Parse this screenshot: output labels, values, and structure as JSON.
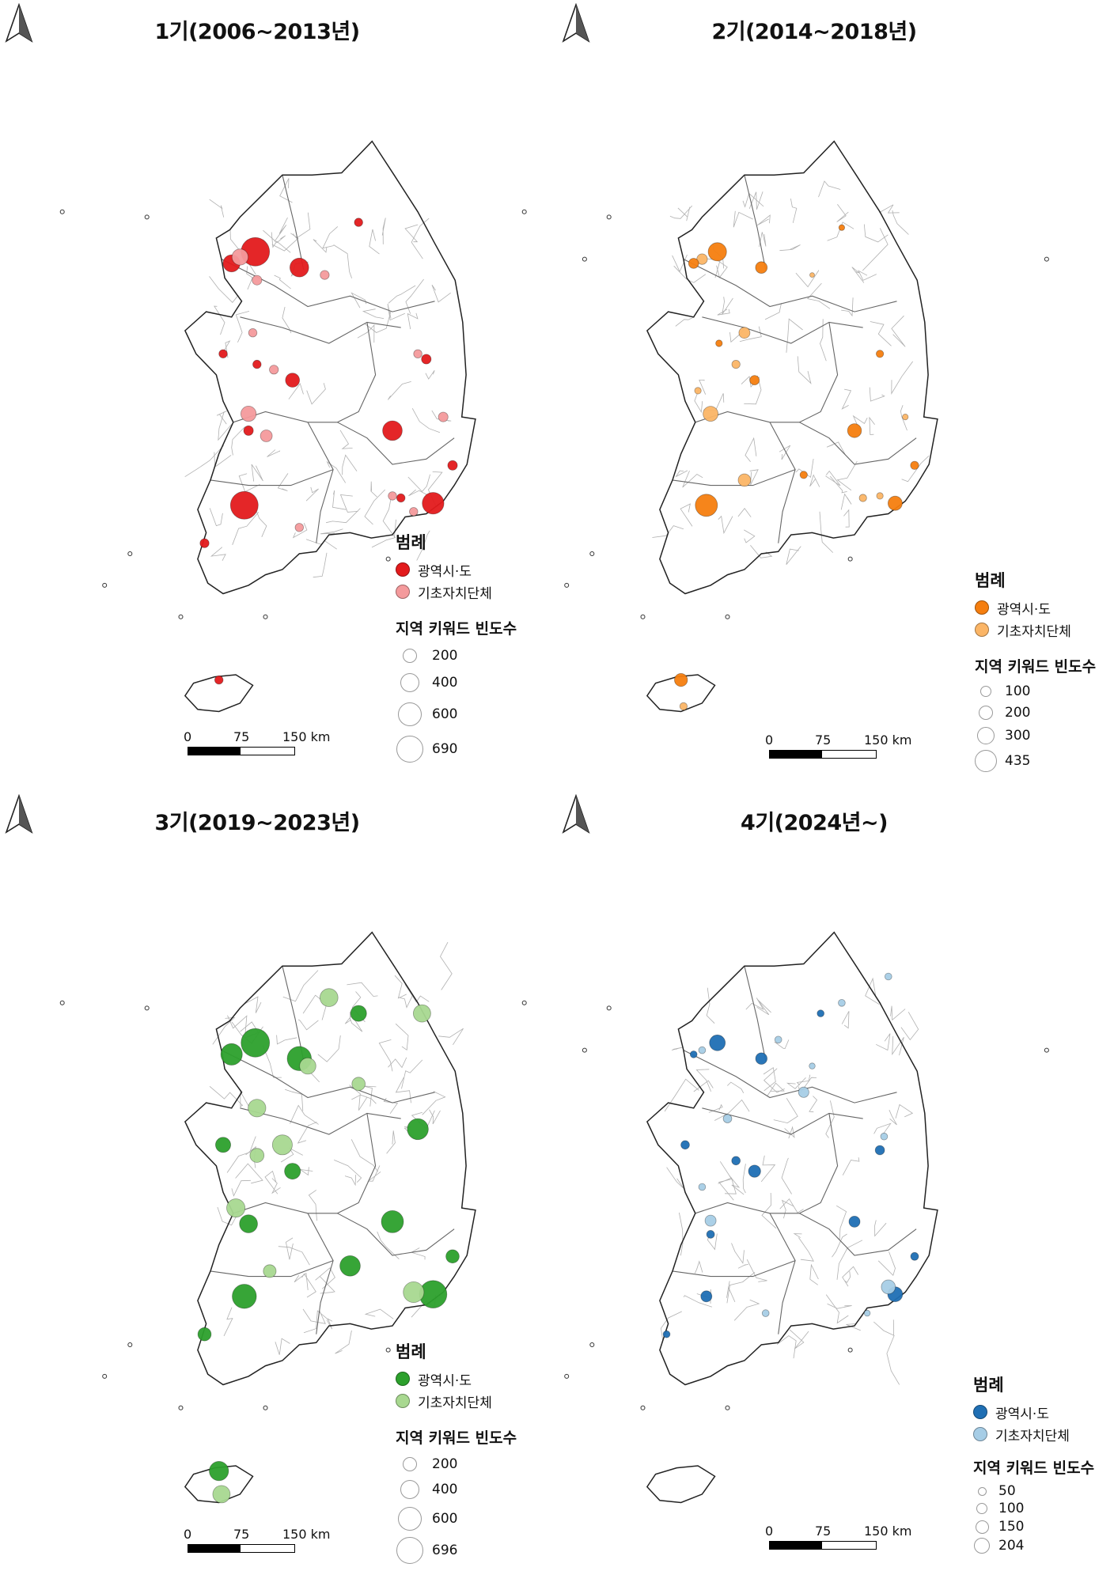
{
  "panels": [
    {
      "title": "1기(2006~2013년)",
      "colors": {
        "metro": "#e31a1c",
        "local": "#f49a9c"
      },
      "legend": {
        "heading": "범례",
        "metro_label": "광역시·도",
        "local_label": "기초자치단체",
        "size_heading": "지역 키워드 빈도수",
        "sizes": [
          "200",
          "400",
          "600",
          "690"
        ]
      },
      "scale": {
        "labels": [
          "0",
          "75",
          "150 km"
        ]
      },
      "points": [
        {
          "lon": 126.98,
          "lat": 37.57,
          "freq": 690,
          "type": "metro"
        },
        {
          "lon": 126.7,
          "lat": 37.46,
          "freq": 250,
          "type": "metro"
        },
        {
          "lon": 127.5,
          "lat": 37.42,
          "freq": 300,
          "type": "metro"
        },
        {
          "lon": 128.2,
          "lat": 37.85,
          "freq": 60,
          "type": "metro"
        },
        {
          "lon": 127.42,
          "lat": 36.35,
          "freq": 170,
          "type": "metro"
        },
        {
          "lon": 127.0,
          "lat": 36.5,
          "freq": 60,
          "type": "metro"
        },
        {
          "lon": 126.6,
          "lat": 36.6,
          "freq": 60,
          "type": "metro"
        },
        {
          "lon": 128.6,
          "lat": 35.87,
          "freq": 330,
          "type": "metro"
        },
        {
          "lon": 129.31,
          "lat": 35.54,
          "freq": 80,
          "type": "metro"
        },
        {
          "lon": 129.08,
          "lat": 35.18,
          "freq": 400,
          "type": "metro"
        },
        {
          "lon": 126.85,
          "lat": 35.16,
          "freq": 650,
          "type": "metro"
        },
        {
          "lon": 126.38,
          "lat": 34.8,
          "freq": 70,
          "type": "metro"
        },
        {
          "lon": 128.7,
          "lat": 35.23,
          "freq": 60,
          "type": "metro"
        },
        {
          "lon": 129.0,
          "lat": 36.55,
          "freq": 80,
          "type": "metro"
        },
        {
          "lon": 126.55,
          "lat": 33.5,
          "freq": 60,
          "type": "metro"
        },
        {
          "lon": 126.9,
          "lat": 35.87,
          "freq": 80,
          "type": "metro"
        },
        {
          "lon": 126.8,
          "lat": 37.52,
          "freq": 220,
          "type": "local"
        },
        {
          "lon": 127.0,
          "lat": 37.3,
          "freq": 80,
          "type": "local"
        },
        {
          "lon": 127.8,
          "lat": 37.35,
          "freq": 70,
          "type": "local"
        },
        {
          "lon": 126.95,
          "lat": 36.8,
          "freq": 60,
          "type": "local"
        },
        {
          "lon": 127.2,
          "lat": 36.45,
          "freq": 70,
          "type": "local"
        },
        {
          "lon": 126.9,
          "lat": 36.03,
          "freq": 200,
          "type": "local"
        },
        {
          "lon": 127.11,
          "lat": 35.82,
          "freq": 120,
          "type": "local"
        },
        {
          "lon": 128.9,
          "lat": 36.6,
          "freq": 60,
          "type": "local"
        },
        {
          "lon": 129.2,
          "lat": 36.0,
          "freq": 80,
          "type": "local"
        },
        {
          "lon": 127.5,
          "lat": 34.95,
          "freq": 60,
          "type": "local"
        },
        {
          "lon": 128.6,
          "lat": 35.25,
          "freq": 60,
          "type": "local"
        },
        {
          "lon": 128.85,
          "lat": 35.1,
          "freq": 60,
          "type": "local"
        }
      ],
      "geo": {
        "x0": 175,
        "y0": 168,
        "sx": 107,
        "sy": 133,
        "maxR": 18,
        "maxF": 690
      }
    },
    {
      "title": "2기(2014~2018년)",
      "colors": {
        "metro": "#f57e0f",
        "local": "#fbb566"
      },
      "legend": {
        "heading": "범례",
        "metro_label": "광역시·도",
        "local_label": "기초자치단체",
        "size_heading": "지역 키워드 빈도수",
        "sizes": [
          "100",
          "200",
          "300",
          "435"
        ]
      },
      "scale": {
        "labels": [
          "0",
          "75",
          "150 km"
        ]
      },
      "points": [
        {
          "lon": 126.98,
          "lat": 37.57,
          "freq": 300,
          "type": "metro"
        },
        {
          "lon": 126.7,
          "lat": 37.46,
          "freq": 90,
          "type": "metro"
        },
        {
          "lon": 127.5,
          "lat": 37.42,
          "freq": 120,
          "type": "metro"
        },
        {
          "lon": 128.45,
          "lat": 37.8,
          "freq": 30,
          "type": "metro"
        },
        {
          "lon": 127.42,
          "lat": 36.35,
          "freq": 80,
          "type": "metro"
        },
        {
          "lon": 127.0,
          "lat": 36.7,
          "freq": 40,
          "type": "metro"
        },
        {
          "lon": 128.6,
          "lat": 35.87,
          "freq": 170,
          "type": "metro"
        },
        {
          "lon": 128.9,
          "lat": 36.6,
          "freq": 50,
          "type": "metro"
        },
        {
          "lon": 129.31,
          "lat": 35.54,
          "freq": 60,
          "type": "metro"
        },
        {
          "lon": 129.08,
          "lat": 35.18,
          "freq": 180,
          "type": "metro"
        },
        {
          "lon": 126.85,
          "lat": 35.16,
          "freq": 435,
          "type": "metro"
        },
        {
          "lon": 128.0,
          "lat": 35.45,
          "freq": 50,
          "type": "metro"
        },
        {
          "lon": 126.55,
          "lat": 33.5,
          "freq": 150,
          "type": "metro"
        },
        {
          "lon": 126.8,
          "lat": 37.5,
          "freq": 100,
          "type": "local"
        },
        {
          "lon": 127.3,
          "lat": 36.8,
          "freq": 110,
          "type": "local"
        },
        {
          "lon": 126.9,
          "lat": 36.03,
          "freq": 200,
          "type": "local"
        },
        {
          "lon": 127.3,
          "lat": 35.4,
          "freq": 140,
          "type": "local"
        },
        {
          "lon": 128.1,
          "lat": 37.35,
          "freq": 20,
          "type": "local"
        },
        {
          "lon": 126.75,
          "lat": 36.25,
          "freq": 40,
          "type": "local"
        },
        {
          "lon": 129.2,
          "lat": 36.0,
          "freq": 30,
          "type": "local"
        },
        {
          "lon": 128.7,
          "lat": 35.23,
          "freq": 50,
          "type": "local"
        },
        {
          "lon": 128.9,
          "lat": 35.25,
          "freq": 40,
          "type": "local"
        },
        {
          "lon": 126.58,
          "lat": 33.25,
          "freq": 50,
          "type": "local"
        },
        {
          "lon": 127.2,
          "lat": 36.5,
          "freq": 60,
          "type": "local"
        }
      ],
      "geo": {
        "x0": 759,
        "y0": 168,
        "sx": 107,
        "sy": 133,
        "maxR": 14,
        "maxF": 435
      }
    },
    {
      "title": "3기(2019~2023년)",
      "colors": {
        "metro": "#2ca02c",
        "local": "#a8d890"
      },
      "legend": {
        "heading": "범례",
        "metro_label": "광역시·도",
        "local_label": "기초자치단체",
        "size_heading": "지역 키워드 빈도수",
        "sizes": [
          "200",
          "400",
          "600",
          "696"
        ]
      },
      "scale": {
        "labels": [
          "0",
          "75",
          "150 km"
        ]
      },
      "points": [
        {
          "lon": 126.98,
          "lat": 37.57,
          "freq": 696,
          "type": "metro"
        },
        {
          "lon": 126.7,
          "lat": 37.46,
          "freq": 400,
          "type": "metro"
        },
        {
          "lon": 127.5,
          "lat": 37.42,
          "freq": 500,
          "type": "metro"
        },
        {
          "lon": 128.2,
          "lat": 37.85,
          "freq": 220,
          "type": "metro"
        },
        {
          "lon": 128.9,
          "lat": 36.75,
          "freq": 380,
          "type": "metro"
        },
        {
          "lon": 127.42,
          "lat": 36.35,
          "freq": 220,
          "type": "metro"
        },
        {
          "lon": 126.6,
          "lat": 36.6,
          "freq": 200,
          "type": "metro"
        },
        {
          "lon": 128.6,
          "lat": 35.87,
          "freq": 420,
          "type": "metro"
        },
        {
          "lon": 129.31,
          "lat": 35.54,
          "freq": 150,
          "type": "metro"
        },
        {
          "lon": 129.08,
          "lat": 35.18,
          "freq": 650,
          "type": "metro"
        },
        {
          "lon": 126.85,
          "lat": 35.16,
          "freq": 500,
          "type": "metro"
        },
        {
          "lon": 126.9,
          "lat": 35.85,
          "freq": 280,
          "type": "metro"
        },
        {
          "lon": 128.1,
          "lat": 35.45,
          "freq": 360,
          "type": "metro"
        },
        {
          "lon": 126.38,
          "lat": 34.8,
          "freq": 150,
          "type": "metro"
        },
        {
          "lon": 126.55,
          "lat": 33.5,
          "freq": 320,
          "type": "metro"
        },
        {
          "lon": 127.85,
          "lat": 38.0,
          "freq": 280,
          "type": "local"
        },
        {
          "lon": 128.95,
          "lat": 37.85,
          "freq": 260,
          "type": "local"
        },
        {
          "lon": 127.6,
          "lat": 37.35,
          "freq": 230,
          "type": "local"
        },
        {
          "lon": 128.2,
          "lat": 37.18,
          "freq": 150,
          "type": "local"
        },
        {
          "lon": 127.0,
          "lat": 36.95,
          "freq": 270,
          "type": "local"
        },
        {
          "lon": 127.3,
          "lat": 36.6,
          "freq": 340,
          "type": "local"
        },
        {
          "lon": 127.0,
          "lat": 36.5,
          "freq": 170,
          "type": "local"
        },
        {
          "lon": 126.75,
          "lat": 36.0,
          "freq": 290,
          "type": "local"
        },
        {
          "lon": 127.15,
          "lat": 35.4,
          "freq": 140,
          "type": "local"
        },
        {
          "lon": 128.85,
          "lat": 35.2,
          "freq": 370,
          "type": "local"
        },
        {
          "lon": 126.58,
          "lat": 33.28,
          "freq": 260,
          "type": "local"
        }
      ],
      "geo": {
        "x0": 175,
        "y0": 1168,
        "sx": 107,
        "sy": 133,
        "maxR": 18,
        "maxF": 696
      }
    },
    {
      "title": "4기(2024년~)",
      "colors": {
        "metro": "#1f6fb4",
        "local": "#a6cde6"
      },
      "legend": {
        "heading": "범례",
        "metro_label": "광역시·도",
        "local_label": "기초자치단체",
        "size_heading": "지역 키워드 빈도수",
        "sizes": [
          "50",
          "100",
          "150",
          "204"
        ]
      },
      "scale": {
        "labels": [
          "0",
          "75",
          "150 km"
        ]
      },
      "points": [
        {
          "lon": 126.98,
          "lat": 37.57,
          "freq": 204,
          "type": "metro"
        },
        {
          "lon": 126.7,
          "lat": 37.46,
          "freq": 40,
          "type": "metro"
        },
        {
          "lon": 127.5,
          "lat": 37.42,
          "freq": 110,
          "type": "metro"
        },
        {
          "lon": 128.2,
          "lat": 37.85,
          "freq": 40,
          "type": "metro"
        },
        {
          "lon": 127.42,
          "lat": 36.35,
          "freq": 120,
          "type": "metro"
        },
        {
          "lon": 127.2,
          "lat": 36.45,
          "freq": 60,
          "type": "metro"
        },
        {
          "lon": 126.6,
          "lat": 36.6,
          "freq": 60,
          "type": "metro"
        },
        {
          "lon": 128.9,
          "lat": 36.55,
          "freq": 70,
          "type": "metro"
        },
        {
          "lon": 128.6,
          "lat": 35.87,
          "freq": 100,
          "type": "metro"
        },
        {
          "lon": 129.31,
          "lat": 35.54,
          "freq": 50,
          "type": "metro"
        },
        {
          "lon": 129.08,
          "lat": 35.18,
          "freq": 180,
          "type": "metro"
        },
        {
          "lon": 126.85,
          "lat": 35.16,
          "freq": 100,
          "type": "metro"
        },
        {
          "lon": 126.38,
          "lat": 34.8,
          "freq": 40,
          "type": "metro"
        },
        {
          "lon": 126.9,
          "lat": 35.75,
          "freq": 50,
          "type": "metro"
        },
        {
          "lon": 128.45,
          "lat": 37.95,
          "freq": 40,
          "type": "local"
        },
        {
          "lon": 129.0,
          "lat": 38.2,
          "freq": 40,
          "type": "local"
        },
        {
          "lon": 127.7,
          "lat": 37.6,
          "freq": 40,
          "type": "local"
        },
        {
          "lon": 128.0,
          "lat": 37.1,
          "freq": 90,
          "type": "local"
        },
        {
          "lon": 128.1,
          "lat": 37.35,
          "freq": 30,
          "type": "local"
        },
        {
          "lon": 126.8,
          "lat": 36.2,
          "freq": 40,
          "type": "local"
        },
        {
          "lon": 127.1,
          "lat": 36.85,
          "freq": 60,
          "type": "local"
        },
        {
          "lon": 126.9,
          "lat": 35.88,
          "freq": 100,
          "type": "local"
        },
        {
          "lon": 128.95,
          "lat": 36.68,
          "freq": 40,
          "type": "local"
        },
        {
          "lon": 129.0,
          "lat": 35.25,
          "freq": 160,
          "type": "local"
        },
        {
          "lon": 127.55,
          "lat": 35.0,
          "freq": 40,
          "type": "local"
        },
        {
          "lon": 128.75,
          "lat": 35.0,
          "freq": 30,
          "type": "local"
        },
        {
          "lon": 126.8,
          "lat": 37.5,
          "freq": 40,
          "type": "local"
        }
      ],
      "geo": {
        "x0": 759,
        "y0": 1168,
        "sx": 107,
        "sy": 133,
        "maxR": 10,
        "maxF": 204
      }
    }
  ]
}
